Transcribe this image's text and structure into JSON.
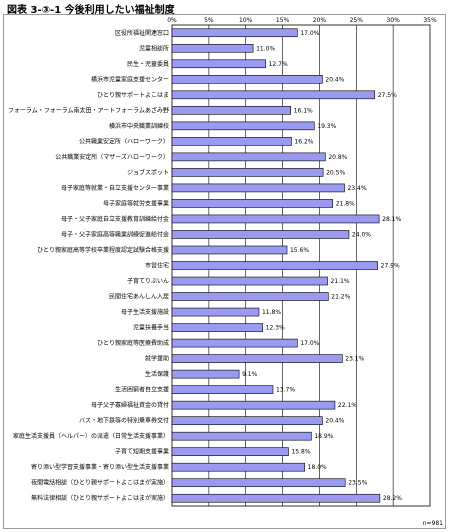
{
  "chart_data": {
    "type": "bar",
    "orientation": "horizontal",
    "title": "図表 3-③-1 今後利用したい福祉制度",
    "note": "n=981",
    "xlim": [
      0,
      35
    ],
    "xticks": [
      "0%",
      "5%",
      "10%",
      "15%",
      "20%",
      "25%",
      "30%",
      "35%"
    ],
    "grid": true,
    "bar_color": "#9a9af0",
    "categories": [
      "区役所福祉関連窓口",
      "児童相談所",
      "民生・児童委員",
      "横浜市児童家庭支援センター",
      "ひとり親サポートよこはま",
      "フォーラム・フォーラム南太田・アートフォーラムあざみ野",
      "横浜市中央職業訓練校",
      "公共職業安定所（ハローワーク）",
      "公共職業安定所（マザーズハローワーク）",
      "ジョブスポット",
      "母子家庭等就業・自立支援センター事業",
      "母子家庭等就労支援事業",
      "母子・父子家庭自立支援教育訓練給付金",
      "母子・父子家庭高等職業訓練促進給付金",
      "ひとり親家庭高等学校卒業程度認定試験合格支援",
      "市営住宅",
      "子育てりぶいん",
      "民間住宅あんしん入居",
      "母子生活支援施設",
      "児童扶養手当",
      "ひとり親家庭等医療費助成",
      "就学援助",
      "生活保護",
      "生活困窮者自立支援",
      "母子父子寡婦福祉資金の貸付",
      "バス・地下鉄等の特別乗車券交付",
      "家庭生活支援員（ヘルパー）の派遣（日常生活支援事業）",
      "子育て短期支援事業",
      "寄り添い型学習支援事業・寄り添い型生活支援事業",
      "夜間電話相談（ひとり親サポートよこはまが実施）",
      "無料法律相談（ひとり親サポートよこはまが実施）"
    ],
    "values": [
      17.0,
      11.0,
      12.7,
      20.4,
      27.5,
      16.1,
      19.3,
      16.2,
      20.8,
      20.5,
      23.4,
      21.8,
      28.1,
      24.0,
      15.6,
      27.9,
      21.1,
      21.2,
      11.8,
      12.3,
      17.0,
      23.1,
      9.1,
      13.7,
      22.1,
      20.4,
      18.9,
      15.8,
      18.0,
      23.5,
      28.2
    ],
    "value_labels": [
      "17.0%",
      "11.0%",
      "12.7%",
      "20.4%",
      "27.5%",
      "16.1%",
      "19.3%",
      "16.2%",
      "20.8%",
      "20.5%",
      "23.4%",
      "21.8%",
      "28.1%",
      "24.0%",
      "15.6%",
      "27.9%",
      "21.1%",
      "21.2%",
      "11.8%",
      "12.3%",
      "17.0%",
      "23.1%",
      "9.1%",
      "13.7%",
      "22.1%",
      "20.4%",
      "18.9%",
      "15.8%",
      "18.0%",
      "23.5%",
      "28.2%"
    ]
  }
}
